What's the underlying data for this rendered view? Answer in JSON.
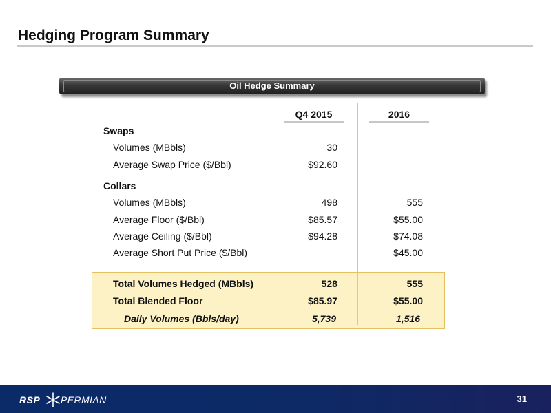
{
  "slide": {
    "title": "Hedging Program Summary",
    "page_number": "31"
  },
  "banner": {
    "title": "Oil Hedge Summary"
  },
  "columns": {
    "col1": "Q4 2015",
    "col2": "2016"
  },
  "swaps": {
    "heading": "Swaps",
    "rows": [
      {
        "label": "Volumes (MBbls)",
        "q4_2015": "30",
        "y2016": ""
      },
      {
        "label": "Average Swap Price ($/Bbl)",
        "q4_2015": "$92.60",
        "y2016": ""
      }
    ]
  },
  "collars": {
    "heading": "Collars",
    "rows": [
      {
        "label": "Volumes (MBbls)",
        "q4_2015": "498",
        "y2016": "555"
      },
      {
        "label": "Average Floor ($/Bbl)",
        "q4_2015": "$85.57",
        "y2016": "$55.00"
      },
      {
        "label": "Average Ceiling ($/Bbl)",
        "q4_2015": "$94.28",
        "y2016": "$74.08"
      },
      {
        "label": "Average Short Put Price ($/Bbl)",
        "q4_2015": "",
        "y2016": "$45.00"
      }
    ]
  },
  "totals": {
    "rows": [
      {
        "label": "Total Volumes Hedged (MBbls)",
        "q4_2015": "528",
        "y2016": "555"
      },
      {
        "label": "Total Blended Floor",
        "q4_2015": "$85.97",
        "y2016": "$55.00"
      },
      {
        "label": "Daily Volumes (Bbls/day)",
        "q4_2015": "5,739",
        "y2016": "1,516"
      }
    ]
  },
  "footer": {
    "logo_left": "RSP",
    "logo_right": "PERMIAN",
    "logo_icon": "star-icon"
  }
}
